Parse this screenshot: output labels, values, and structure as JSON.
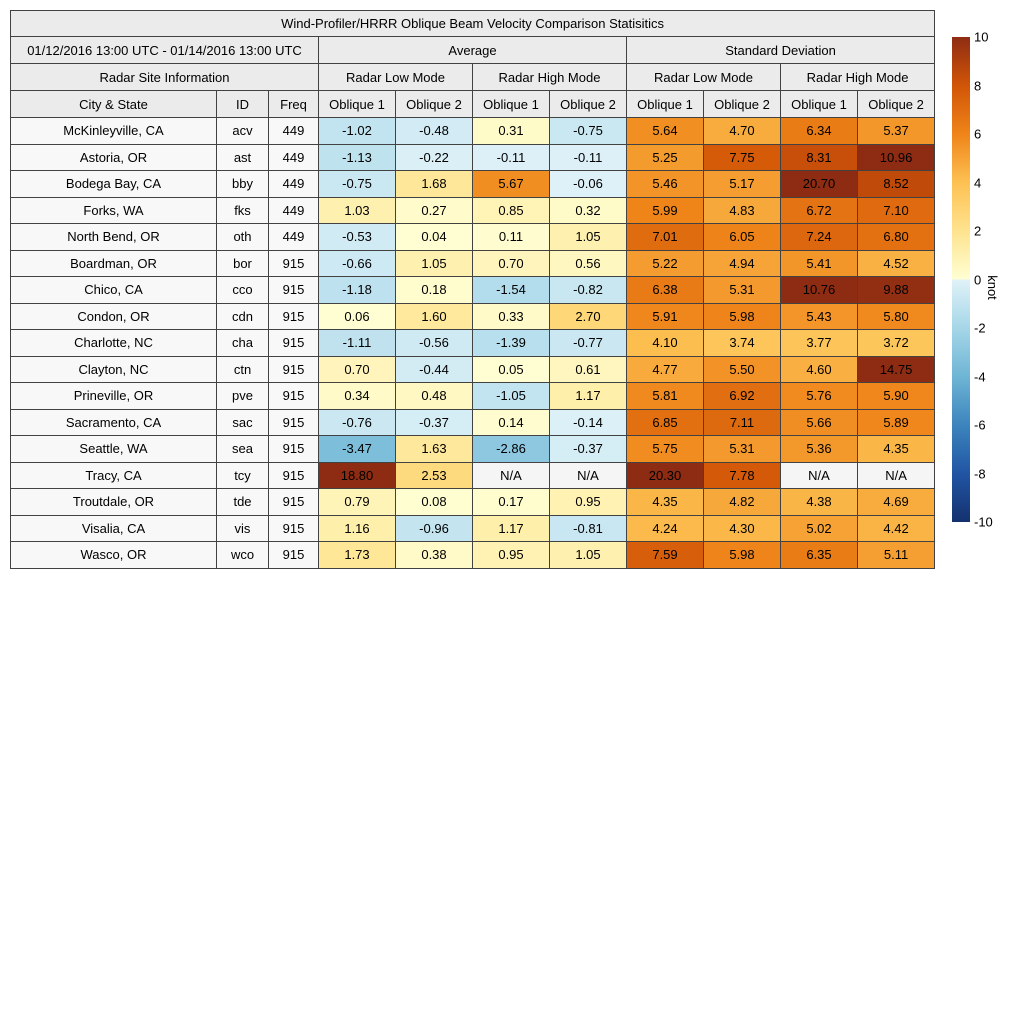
{
  "title": "Wind-Profiler/HRRR Oblique Beam Velocity Comparison Statisitics",
  "header": {
    "date_range": "01/12/2016 13:00 UTC - 01/14/2016 13:00 UTC",
    "group_average": "Average",
    "group_std": "Standard Deviation",
    "site_info_label": "Radar Site Information",
    "mode_headers": [
      "Radar Low Mode",
      "Radar High Mode",
      "Radar Low Mode",
      "Radar High Mode"
    ],
    "col_headers": [
      "City & State",
      "ID",
      "Freq",
      "Oblique 1",
      "Oblique 2",
      "Oblique 1",
      "Oblique 2",
      "Oblique 1",
      "Oblique 2",
      "Oblique 1",
      "Oblique 2"
    ]
  },
  "colorbar": {
    "label": "knot",
    "ticks": [
      10,
      8,
      6,
      4,
      2,
      0,
      -2,
      -4,
      -6,
      -8,
      -10
    ],
    "min": -10,
    "max": 10
  },
  "colormap": {
    "positive": [
      [
        0,
        "#ffffd4"
      ],
      [
        2,
        "#fee38e"
      ],
      [
        4,
        "#fdc152"
      ],
      [
        6,
        "#ef8419"
      ],
      [
        8,
        "#d15507"
      ],
      [
        10,
        "#8e2c13"
      ]
    ],
    "negative": [
      [
        0,
        "#e0f2f8"
      ],
      [
        2,
        "#a6d6e8"
      ],
      [
        4,
        "#6eb5d5"
      ],
      [
        6,
        "#3c85bd"
      ],
      [
        8,
        "#2155a4"
      ],
      [
        10,
        "#14316e"
      ]
    ],
    "na_color": "#f5f5f5"
  },
  "chart_data": {
    "type": "heatmap",
    "title": "Wind-Profiler/HRRR Oblique Beam Velocity Comparison Statisitics",
    "value_unit": "knot",
    "value_range": [
      -10,
      10
    ],
    "column_groups": [
      "Average / Radar Low Mode",
      "Average / Radar High Mode",
      "Standard Deviation / Radar Low Mode",
      "Standard Deviation / Radar High Mode"
    ],
    "value_columns": [
      "Avg Low Oblique 1",
      "Avg Low Oblique 2",
      "Avg High Oblique 1",
      "Avg High Oblique 2",
      "Std Low Oblique 1",
      "Std Low Oblique 2",
      "Std High Oblique 1",
      "Std High Oblique 2"
    ],
    "rows": [
      {
        "city": "McKinleyville, CA",
        "id": "acv",
        "freq": "449",
        "values": [
          "-1.02",
          "-0.48",
          "0.31",
          "-0.75",
          "5.64",
          "4.70",
          "6.34",
          "5.37"
        ]
      },
      {
        "city": "Astoria, OR",
        "id": "ast",
        "freq": "449",
        "values": [
          "-1.13",
          "-0.22",
          "-0.11",
          "-0.11",
          "5.25",
          "7.75",
          "8.31",
          "10.96"
        ]
      },
      {
        "city": "Bodega Bay, CA",
        "id": "bby",
        "freq": "449",
        "values": [
          "-0.75",
          "1.68",
          "5.67",
          "-0.06",
          "5.46",
          "5.17",
          "20.70",
          "8.52"
        ]
      },
      {
        "city": "Forks, WA",
        "id": "fks",
        "freq": "449",
        "values": [
          "1.03",
          "0.27",
          "0.85",
          "0.32",
          "5.99",
          "4.83",
          "6.72",
          "7.10"
        ]
      },
      {
        "city": "North Bend, OR",
        "id": "oth",
        "freq": "449",
        "values": [
          "-0.53",
          "0.04",
          "0.11",
          "1.05",
          "7.01",
          "6.05",
          "7.24",
          "6.80"
        ]
      },
      {
        "city": "Boardman, OR",
        "id": "bor",
        "freq": "915",
        "values": [
          "-0.66",
          "1.05",
          "0.70",
          "0.56",
          "5.22",
          "4.94",
          "5.41",
          "4.52"
        ]
      },
      {
        "city": "Chico, CA",
        "id": "cco",
        "freq": "915",
        "values": [
          "-1.18",
          "0.18",
          "-1.54",
          "-0.82",
          "6.38",
          "5.31",
          "10.76",
          "9.88"
        ]
      },
      {
        "city": "Condon, OR",
        "id": "cdn",
        "freq": "915",
        "values": [
          "0.06",
          "1.60",
          "0.33",
          "2.70",
          "5.91",
          "5.98",
          "5.43",
          "5.80"
        ]
      },
      {
        "city": "Charlotte, NC",
        "id": "cha",
        "freq": "915",
        "values": [
          "-1.11",
          "-0.56",
          "-1.39",
          "-0.77",
          "4.10",
          "3.74",
          "3.77",
          "3.72"
        ]
      },
      {
        "city": "Clayton, NC",
        "id": "ctn",
        "freq": "915",
        "values": [
          "0.70",
          "-0.44",
          "0.05",
          "0.61",
          "4.77",
          "5.50",
          "4.60",
          "14.75"
        ]
      },
      {
        "city": "Prineville, OR",
        "id": "pve",
        "freq": "915",
        "values": [
          "0.34",
          "0.48",
          "-1.05",
          "1.17",
          "5.81",
          "6.92",
          "5.76",
          "5.90"
        ]
      },
      {
        "city": "Sacramento, CA",
        "id": "sac",
        "freq": "915",
        "values": [
          "-0.76",
          "-0.37",
          "0.14",
          "-0.14",
          "6.85",
          "7.11",
          "5.66",
          "5.89"
        ]
      },
      {
        "city": "Seattle, WA",
        "id": "sea",
        "freq": "915",
        "values": [
          "-3.47",
          "1.63",
          "-2.86",
          "-0.37",
          "5.75",
          "5.31",
          "5.36",
          "4.35"
        ]
      },
      {
        "city": "Tracy, CA",
        "id": "tcy",
        "freq": "915",
        "values": [
          "18.80",
          "2.53",
          "N/A",
          "N/A",
          "20.30",
          "7.78",
          "N/A",
          "N/A"
        ]
      },
      {
        "city": "Troutdale, OR",
        "id": "tde",
        "freq": "915",
        "values": [
          "0.79",
          "0.08",
          "0.17",
          "0.95",
          "4.35",
          "4.82",
          "4.38",
          "4.69"
        ]
      },
      {
        "city": "Visalia, CA",
        "id": "vis",
        "freq": "915",
        "values": [
          "1.16",
          "-0.96",
          "1.17",
          "-0.81",
          "4.24",
          "4.30",
          "5.02",
          "4.42"
        ]
      },
      {
        "city": "Wasco, OR",
        "id": "wco",
        "freq": "915",
        "values": [
          "1.73",
          "0.38",
          "0.95",
          "1.05",
          "7.59",
          "5.98",
          "6.35",
          "5.11"
        ]
      }
    ]
  }
}
